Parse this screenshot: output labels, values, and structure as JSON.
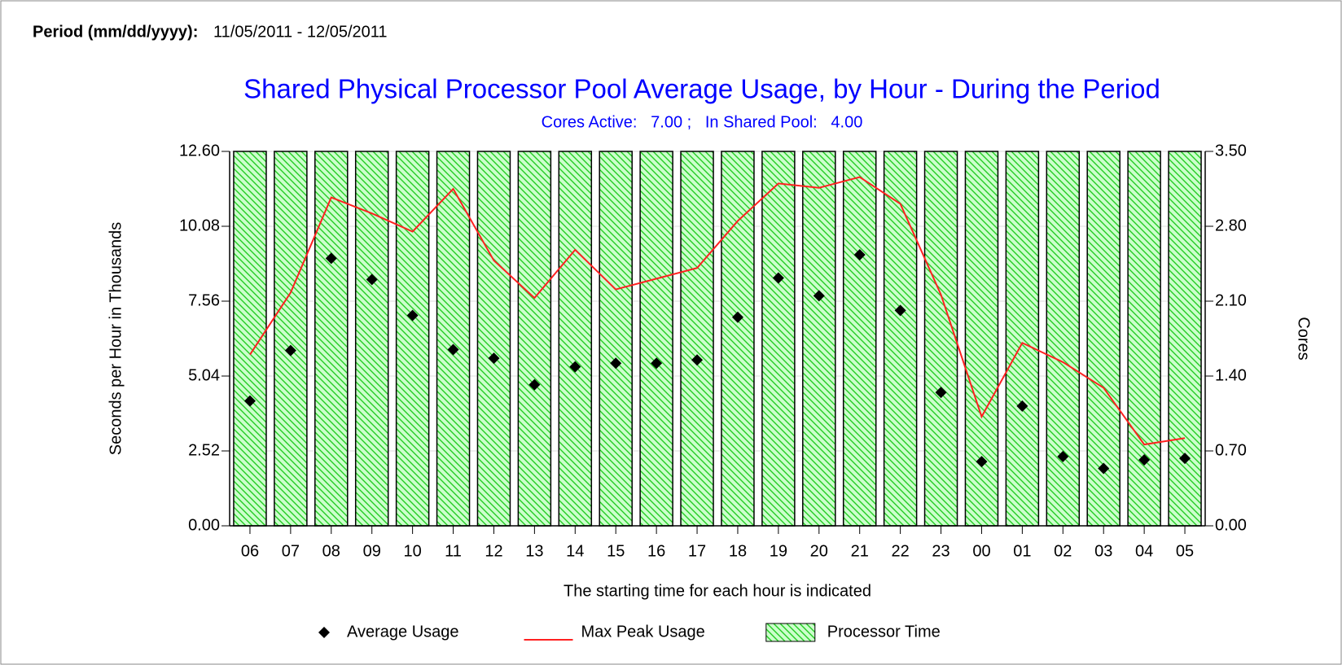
{
  "header": {
    "period_label": "Period (mm/dd/yyyy):",
    "period_value": "11/05/2011 - 12/05/2011"
  },
  "chart_data": {
    "type": "bar",
    "title": "Shared Physical Processor Pool Average Usage, by Hour - During the Period",
    "subtitle": "Cores Active:   7.00 ;   In Shared Pool:   4.00",
    "x_label": "The starting time for each hour is indicated",
    "y_label": "Seconds per Hour in Thousands",
    "y2_label": "Cores",
    "categories": [
      "06",
      "07",
      "08",
      "09",
      "10",
      "11",
      "12",
      "13",
      "14",
      "15",
      "16",
      "17",
      "18",
      "19",
      "20",
      "21",
      "22",
      "23",
      "00",
      "01",
      "02",
      "03",
      "04",
      "05"
    ],
    "series": [
      {
        "name": "Processor Time",
        "type": "bar",
        "color": "#00cc00",
        "axis": "y",
        "values": [
          12.6,
          12.6,
          12.6,
          12.6,
          12.6,
          12.6,
          12.6,
          12.6,
          12.6,
          12.6,
          12.6,
          12.6,
          12.6,
          12.6,
          12.6,
          12.6,
          12.6,
          12.6,
          12.6,
          12.6,
          12.6,
          12.6,
          12.6,
          12.6
        ]
      },
      {
        "name": "Average Usage",
        "type": "scatter",
        "color": "#000000",
        "axis": "y",
        "values": [
          4.2,
          5.9,
          9.0,
          8.29,
          7.08,
          5.93,
          5.64,
          4.75,
          5.35,
          5.47,
          5.47,
          5.58,
          7.02,
          8.34,
          7.74,
          9.12,
          7.25,
          4.49,
          2.16,
          4.03,
          2.33,
          1.93,
          2.22,
          2.27
        ]
      },
      {
        "name": "Max Peak Usage",
        "type": "line",
        "color": "#ff2020",
        "axis": "y2",
        "values": [
          1.6,
          2.18,
          3.07,
          2.92,
          2.75,
          3.15,
          2.48,
          2.13,
          2.58,
          2.21,
          2.31,
          2.41,
          2.85,
          3.2,
          3.16,
          3.26,
          3.01,
          2.16,
          1.02,
          1.71,
          1.53,
          1.29,
          0.76,
          0.82
        ]
      }
    ],
    "legend_order": [
      1,
      2,
      0
    ],
    "ylim": [
      0,
      12.6
    ],
    "yticks": [
      {
        "value": 0,
        "label": "0.00"
      },
      {
        "value": 2.52,
        "label": "2.52"
      },
      {
        "value": 5.04,
        "label": "5.04"
      },
      {
        "value": 7.56,
        "label": "7.56"
      },
      {
        "value": 10.08,
        "label": "10.08"
      },
      {
        "value": 12.6,
        "label": "12.60"
      }
    ],
    "y2lim": [
      0,
      3.5
    ],
    "y2ticks": [
      {
        "value": 0,
        "label": "0.00"
      },
      {
        "value": 0.7,
        "label": "0.70"
      },
      {
        "value": 1.4,
        "label": "1.40"
      },
      {
        "value": 2.1,
        "label": "2.10"
      },
      {
        "value": 2.8,
        "label": "2.80"
      },
      {
        "value": 3.5,
        "label": "3.50"
      }
    ],
    "grid": true
  }
}
